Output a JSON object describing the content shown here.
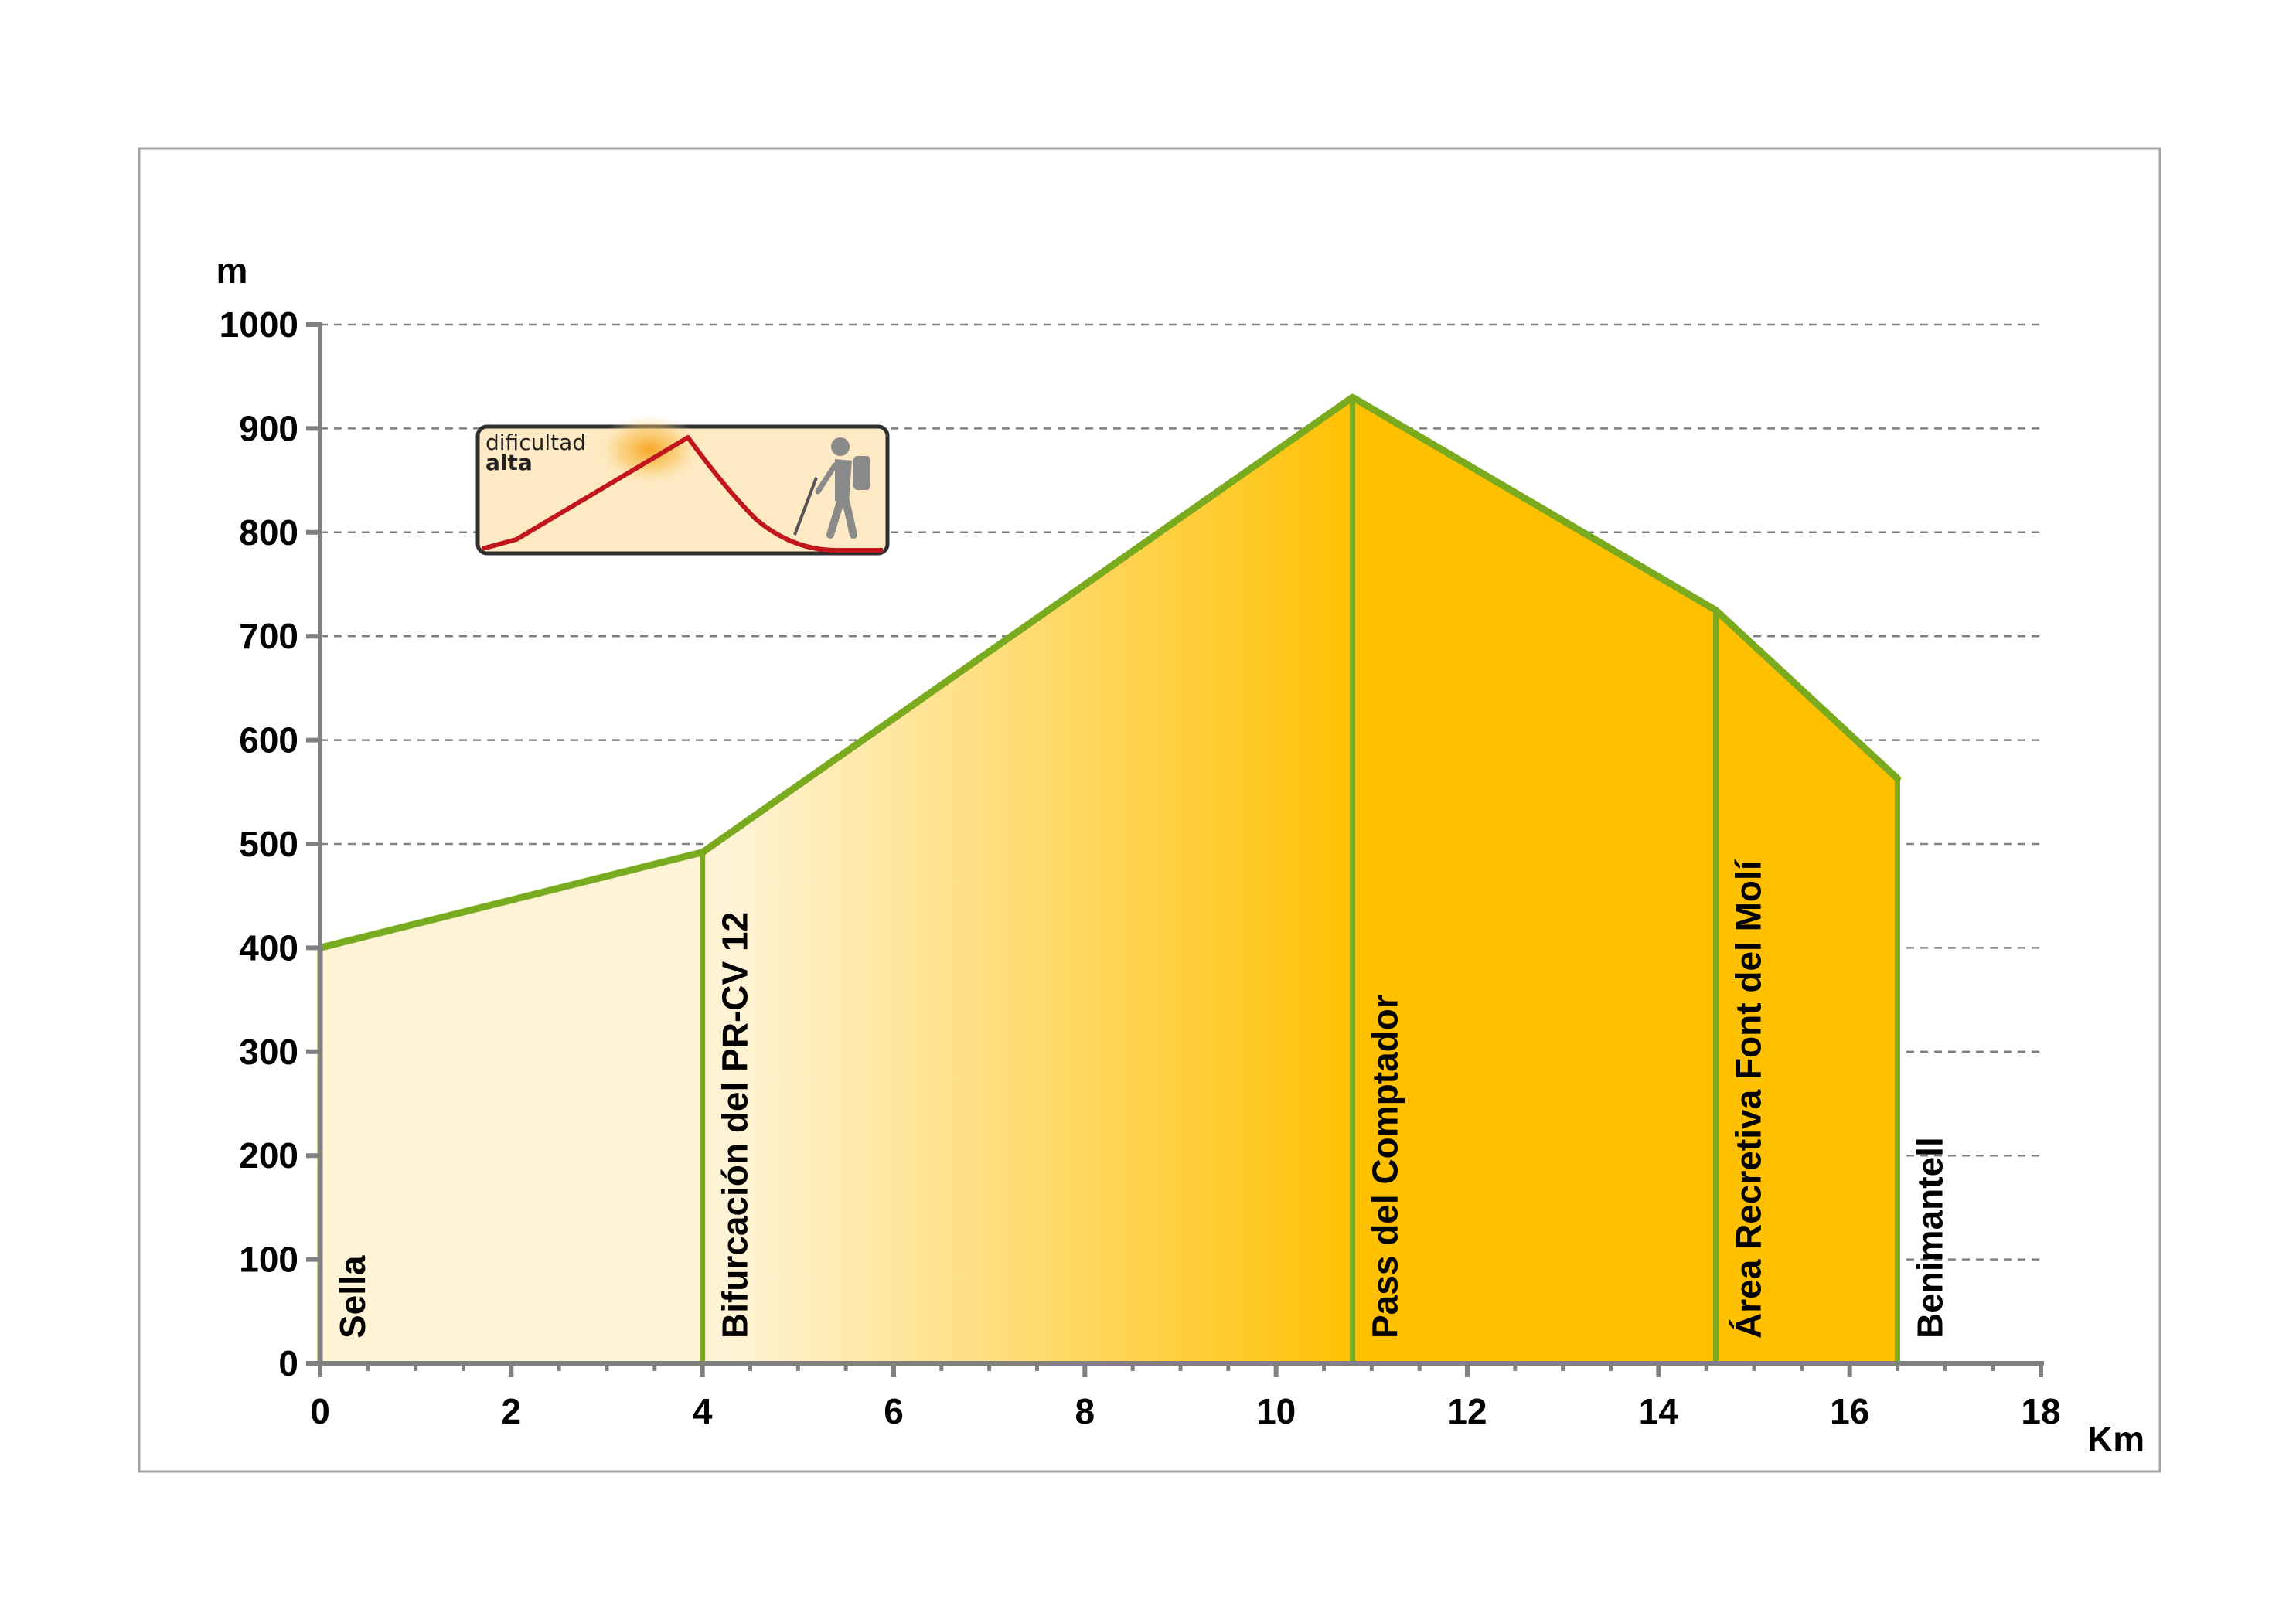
{
  "chart_data": {
    "type": "area",
    "title": "",
    "xlabel": "Km",
    "ylabel": "m",
    "xlim": [
      0,
      18
    ],
    "ylim": [
      0,
      1000
    ],
    "x_ticks": [
      0,
      2,
      4,
      6,
      8,
      10,
      12,
      14,
      16,
      18
    ],
    "x_tick_labels": [
      "0",
      "2",
      "4",
      "6",
      "8",
      "10",
      "12",
      "14",
      "16",
      "18"
    ],
    "y_ticks": [
      0,
      100,
      200,
      300,
      400,
      500,
      600,
      700,
      800,
      900,
      1000
    ],
    "y_tick_labels": [
      "0",
      "100",
      "200",
      "300",
      "400",
      "500",
      "600",
      "700",
      "800",
      "900",
      "1000"
    ],
    "grid": "horizontal dashed",
    "series": [
      {
        "x": [
          0,
          4.0,
          10.8,
          14.6,
          16.5
        ],
        "y": [
          400,
          492,
          930,
          725,
          563
        ]
      }
    ],
    "waypoints": [
      {
        "name": "Sella",
        "km": 0,
        "alt": 400
      },
      {
        "name": "Bifurcación del PR-CV 12",
        "km": 4.0,
        "alt": 492
      },
      {
        "name": "Pass del Comptador",
        "km": 10.8,
        "alt": 930
      },
      {
        "name": "Área Recretiva Font del Molí",
        "km": 14.6,
        "alt": 725
      },
      {
        "name": "Benimantell",
        "km": 16.5,
        "alt": 563
      }
    ],
    "colors": {
      "line": "#7aab1e",
      "fill_light": "#fff3d6",
      "fill_dark": "#ffc000",
      "axis": "#808080",
      "grid": "#808080"
    }
  },
  "badge": {
    "line1": "dificultad",
    "line2": "alta",
    "icons": [
      "mountain-profile-icon",
      "hiker-icon"
    ]
  }
}
